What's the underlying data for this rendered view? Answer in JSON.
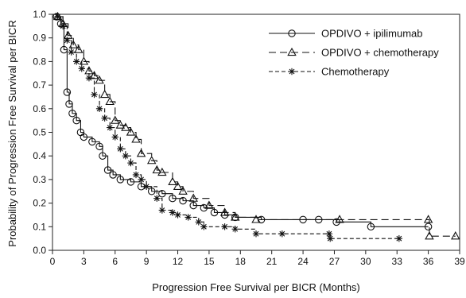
{
  "chart_data": {
    "type": "line",
    "xlabel": "Progression Free Survival per BICR (Months)",
    "ylabel": "Probability of Progression Free Survival per BICR",
    "xlim": [
      0,
      39
    ],
    "ylim": [
      0,
      1.0
    ],
    "xticks": [
      0,
      3,
      6,
      9,
      12,
      15,
      18,
      21,
      24,
      27,
      30,
      33,
      36,
      39
    ],
    "yticks": [
      0.0,
      0.1,
      0.2,
      0.3,
      0.4,
      0.5,
      0.6,
      0.7,
      0.8,
      0.9,
      1.0
    ],
    "ytick_labels": [
      "0.0",
      "0.1",
      "0.2",
      "0.3",
      "0.4",
      "0.5",
      "0.6",
      "0.7",
      "0.8",
      "0.9",
      "1.0"
    ],
    "grid": false,
    "legend_position": "top-right",
    "series": [
      {
        "name": "OPDIVO + ipilimumab",
        "marker": "circle",
        "dash": "solid",
        "points": [
          [
            0,
            1.0
          ],
          [
            0.4,
            0.99
          ],
          [
            0.8,
            0.96
          ],
          [
            1.1,
            0.85
          ],
          [
            1.4,
            0.67
          ],
          [
            1.6,
            0.62
          ],
          [
            1.9,
            0.58
          ],
          [
            2.3,
            0.55
          ],
          [
            2.7,
            0.5
          ],
          [
            3.0,
            0.48
          ],
          [
            3.8,
            0.46
          ],
          [
            4.5,
            0.44
          ],
          [
            4.8,
            0.4
          ],
          [
            5.3,
            0.34
          ],
          [
            5.8,
            0.32
          ],
          [
            6.5,
            0.3
          ],
          [
            7.5,
            0.29
          ],
          [
            8.5,
            0.27
          ],
          [
            9.5,
            0.25
          ],
          [
            10.5,
            0.24
          ],
          [
            11.5,
            0.22
          ],
          [
            12.5,
            0.21
          ],
          [
            13.5,
            0.19
          ],
          [
            14.5,
            0.18
          ],
          [
            15.5,
            0.16
          ],
          [
            16.5,
            0.15
          ],
          [
            17.5,
            0.14
          ],
          [
            20,
            0.13
          ],
          [
            24,
            0.13
          ],
          [
            25.5,
            0.13
          ],
          [
            27.2,
            0.12
          ],
          [
            30.5,
            0.1
          ],
          [
            36,
            0.1
          ]
        ]
      },
      {
        "name": "OPDIVO + chemotherapy",
        "marker": "triangle",
        "dash": "long",
        "points": [
          [
            0,
            1.0
          ],
          [
            0.5,
            0.99
          ],
          [
            1.0,
            0.96
          ],
          [
            1.5,
            0.91
          ],
          [
            2.0,
            0.87
          ],
          [
            2.5,
            0.85
          ],
          [
            3.0,
            0.8
          ],
          [
            3.5,
            0.76
          ],
          [
            4.0,
            0.74
          ],
          [
            4.5,
            0.72
          ],
          [
            5.0,
            0.66
          ],
          [
            5.5,
            0.63
          ],
          [
            6.0,
            0.55
          ],
          [
            6.5,
            0.53
          ],
          [
            7.0,
            0.52
          ],
          [
            7.5,
            0.5
          ],
          [
            8.0,
            0.47
          ],
          [
            8.5,
            0.41
          ],
          [
            9.5,
            0.38
          ],
          [
            10.0,
            0.34
          ],
          [
            10.5,
            0.33
          ],
          [
            11.5,
            0.29
          ],
          [
            12.0,
            0.27
          ],
          [
            12.5,
            0.25
          ],
          [
            13.5,
            0.22
          ],
          [
            15.0,
            0.19
          ],
          [
            16.5,
            0.16
          ],
          [
            17.5,
            0.14
          ],
          [
            19.5,
            0.13
          ],
          [
            27.5,
            0.13
          ],
          [
            36,
            0.13
          ],
          [
            36.1,
            0.06
          ],
          [
            38.6,
            0.06
          ]
        ]
      },
      {
        "name": "Chemotherapy",
        "marker": "asterisk",
        "dash": "short",
        "points": [
          [
            0,
            1.0
          ],
          [
            0.5,
            0.99
          ],
          [
            1.0,
            0.95
          ],
          [
            1.4,
            0.89
          ],
          [
            1.8,
            0.84
          ],
          [
            2.3,
            0.8
          ],
          [
            2.8,
            0.77
          ],
          [
            3.5,
            0.73
          ],
          [
            4.0,
            0.66
          ],
          [
            4.5,
            0.6
          ],
          [
            5.0,
            0.56
          ],
          [
            5.5,
            0.52
          ],
          [
            6.0,
            0.48
          ],
          [
            6.5,
            0.43
          ],
          [
            7.0,
            0.4
          ],
          [
            7.5,
            0.37
          ],
          [
            8.0,
            0.32
          ],
          [
            8.5,
            0.3
          ],
          [
            9.0,
            0.27
          ],
          [
            10.0,
            0.22
          ],
          [
            10.5,
            0.17
          ],
          [
            11.5,
            0.16
          ],
          [
            12.0,
            0.15
          ],
          [
            13.0,
            0.14
          ],
          [
            14.0,
            0.12
          ],
          [
            14.5,
            0.1
          ],
          [
            16.5,
            0.1
          ],
          [
            17.5,
            0.09
          ],
          [
            19.5,
            0.07
          ],
          [
            22.0,
            0.07
          ],
          [
            26.5,
            0.07
          ],
          [
            26.6,
            0.05
          ],
          [
            33.2,
            0.05
          ]
        ]
      }
    ]
  }
}
